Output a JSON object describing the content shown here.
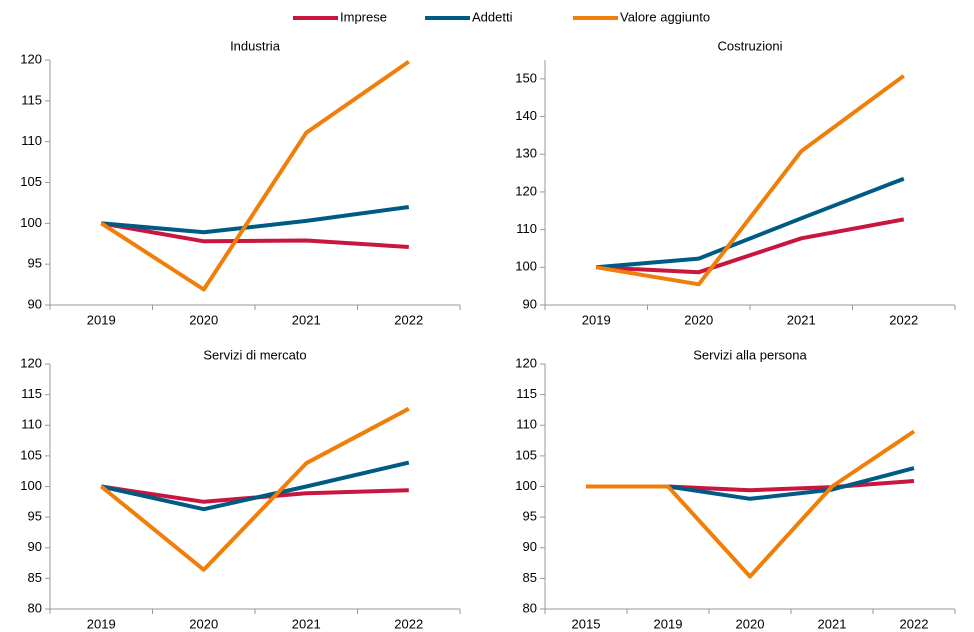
{
  "chart_data": [
    {
      "type": "line",
      "title": "Industria",
      "categories": [
        "2019",
        "2020",
        "2021",
        "2022"
      ],
      "series": [
        {
          "name": "Imprese",
          "color": "#c8163f",
          "values": [
            100,
            97.8,
            97.9,
            97.1
          ]
        },
        {
          "name": "Addetti",
          "color": "#005b84",
          "values": [
            100,
            98.9,
            100.3,
            102
          ]
        },
        {
          "name": "Valore aggiunto",
          "color": "#f07f0a",
          "values": [
            100,
            91.9,
            111.1,
            119.8
          ]
        }
      ],
      "ylim": [
        90,
        120
      ],
      "yticks": [
        90,
        95,
        100,
        105,
        110,
        115,
        120
      ]
    },
    {
      "type": "line",
      "title": "Costruzioni",
      "categories": [
        "2019",
        "2020",
        "2021",
        "2022"
      ],
      "series": [
        {
          "name": "Imprese",
          "color": "#c8163f",
          "values": [
            100,
            98.7,
            107.7,
            112.7
          ]
        },
        {
          "name": "Addetti",
          "color": "#005b84",
          "values": [
            100,
            102.3,
            113,
            123.5
          ]
        },
        {
          "name": "Valore aggiunto",
          "color": "#f07f0a",
          "values": [
            100,
            95.5,
            130.8,
            150.8
          ]
        }
      ],
      "ylim": [
        90,
        155
      ],
      "yticks": [
        90,
        100,
        110,
        120,
        130,
        140,
        150
      ]
    },
    {
      "type": "line",
      "title": "Servizi di mercato",
      "categories": [
        "2019",
        "2020",
        "2021",
        "2022"
      ],
      "series": [
        {
          "name": "Imprese",
          "color": "#c8163f",
          "values": [
            100,
            97.5,
            98.9,
            99.4
          ]
        },
        {
          "name": "Addetti",
          "color": "#005b84",
          "values": [
            100,
            96.3,
            100,
            103.9
          ]
        },
        {
          "name": "Valore aggiunto",
          "color": "#f07f0a",
          "values": [
            100,
            86.4,
            103.8,
            112.7
          ]
        }
      ],
      "ylim": [
        80,
        120
      ],
      "yticks": [
        80,
        85,
        90,
        95,
        100,
        105,
        110,
        115,
        120
      ]
    },
    {
      "type": "line",
      "title": "Servizi alla persona",
      "categories": [
        "2015",
        "2019",
        "2020",
        "2021",
        "2022"
      ],
      "series": [
        {
          "name": "Imprese",
          "color": "#c8163f",
          "values": [
            100,
            100,
            99.4,
            99.9,
            100.9
          ]
        },
        {
          "name": "Addetti",
          "color": "#005b84",
          "values": [
            100,
            100,
            98,
            99.5,
            103
          ]
        },
        {
          "name": "Valore aggiunto",
          "color": "#f07f0a",
          "values": [
            100,
            100,
            85.3,
            100,
            109
          ]
        }
      ],
      "ylim": [
        80,
        120
      ],
      "yticks": [
        80,
        85,
        90,
        95,
        100,
        105,
        110,
        115,
        120
      ]
    }
  ]
}
